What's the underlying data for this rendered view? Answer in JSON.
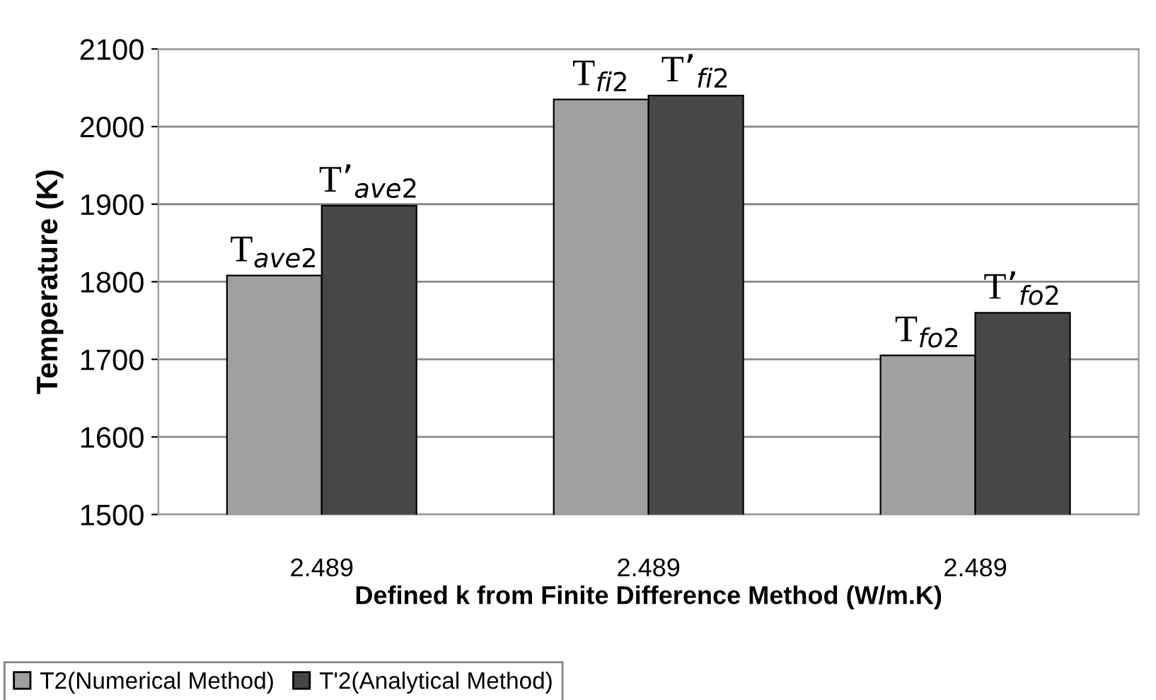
{
  "chart_data": {
    "type": "bar",
    "xlabel": "Defined k from Finite Difference Method (W/m.K)",
    "ylabel": "Temperature (K)",
    "categories": [
      "2.489",
      "2.489",
      "2.489"
    ],
    "series": [
      {
        "name": "T2(Numerical Method)",
        "color": "#a0a0a0",
        "values": [
          1808,
          2035,
          1705
        ],
        "value_labels": [
          "T$_{ave2}$",
          "T$_{fi2}$",
          "T$_{fo2}$"
        ]
      },
      {
        "name": "T'2(Analytical Method)",
        "color": "#474747",
        "values": [
          1898,
          2040,
          1760
        ],
        "value_labels": [
          "T’$_{ave2}$",
          "T’$_{fi2}$",
          "T’$_{fo2}$"
        ]
      }
    ],
    "ylim": [
      1500,
      2100
    ],
    "yticks": [
      1500,
      1600,
      1700,
      1800,
      1900,
      2000,
      2100
    ],
    "grid": "y",
    "legend": "bottom left"
  }
}
